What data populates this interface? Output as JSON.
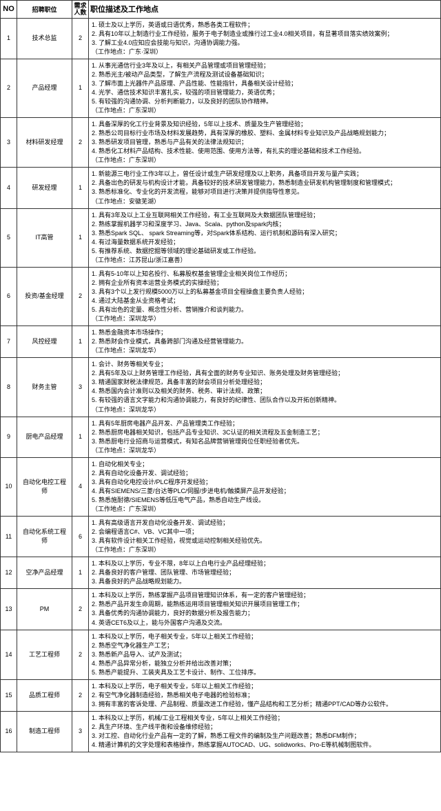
{
  "headers": {
    "no": "NO",
    "position": "招聘职位",
    "count": "需求\n人数",
    "desc": "职位描述及工作地点"
  },
  "rows": [
    {
      "no": "1",
      "position": "技术总监",
      "count": "2",
      "desc": "1. 硕士及以上学历，英语或日语优秀，熟悉各类工程软件；\n2. 具有10年以上制造行业工作经验，服务于电子制造业或推行过工业4.0相关项目，有显著项目落实绩效案例；\n3. 了解工业4.0应知应会技能与知识，沟通协调能力强。\n    （工作地点：广东·深圳）"
    },
    {
      "no": "2",
      "position": "产品经理",
      "count": "1",
      "desc": "1. 从事光通信行业3年及以上，有相关产品管理或项目管理经验；\n2. 熟悉光主/被动产品类型，了解生产流程及测试设备基础知识；\n3. 了解市面上光器件产品原理、产品性能、性能指针，具备相关设计经验；\n4. 光学、通信技术知识丰富扎实，较强的项目管理能力，英语优秀；\n5. 有较强的沟通协调、分析判断能力，以及良好的团队协作精神。\n    （工作地点：广东深圳）"
    },
    {
      "no": "3",
      "position": "材料研发经理",
      "count": "2",
      "desc": "1. 具备深厚的化工行业背景及知识经验，5年以上技术、质量及生产管理经验；\n2. 熟悉公司目标行业市场及材料发展趋势，具有深厚的橡胶、塑料、金属材料专业知识及产品战略规划能力；\n3. 熟悉研发项目管理，熟悉与产品有关的法律法规知识；\n4. 熟悉化工材料产品结构、技术性能、使用范围、使用方法等，有扎实的理论基础和技术工作经验。\n    （工作地点：广东深圳）"
    },
    {
      "no": "4",
      "position": "研发经理",
      "count": "1",
      "desc": "1. 新能源三电行业工作3年以上，曾任设计或生产研发经理及以上职务，具备项目开发与量产实践；\n2. 具备出色的研发与机构设计才能，具备较好的技术研发管理能力，熟悉制造业研发机构管理制度和管理模式；\n3. 熟悉标准化、专业化的开发流程，能够对项目进行决策并提供指导性意见。\n    （工作地点：安徽芜湖）"
    },
    {
      "no": "5",
      "position": "IT高管",
      "count": "1",
      "desc": "1. 具有3年及以上工业互联网相关工作经验，有工业互联网及大数据团队管理经验；\n2. 熟练掌握机器学习和深度学习、Java、Scala、python及spark内核；\n3. 熟悉Spark SQL、 spark Streaming等，对Spark体系结构、运行机制和源码有深入研究；\n4. 有过海量数据系统开发经验；\n5. 有推荐系统、数据挖掘等领域的理论基础研发或工作经验。\n    （工作地点：江苏昆山/浙江嘉善）"
    },
    {
      "no": "6",
      "position": "投资/基金经理",
      "count": "2",
      "desc": "1. 具有5-10年以上知名投行、私募股权基金管理企业相关岗位工作经历；\n2. 拥有企业所有资本运营业务模式的实操经验；\n3. 具有3个以上发行规模5000万以上的私募基金项目全程操盘主要负责人经验；\n4. 通过大陆基金从业资格考试；\n5. 具有出色的定量、概念性分析、营销推介和谈判能力。\n    （工作地点：深圳龙华）"
    },
    {
      "no": "7",
      "position": "风控经理",
      "count": "1",
      "desc": "1. 熟悉金融资本市场操作；\n2. 熟悉财会作业模式，具备跨部门沟通及经营管理能力。\n    （工作地点：深圳龙华）"
    },
    {
      "no": "8",
      "position": "财务主管",
      "count": "3",
      "desc": "1. 会计、财务等相关专业；\n2. 具有5年及以上财务管理工作经验，具有全面的财务专业知识、账务处理及财务管理经验；\n3. 精通国家财税法律规范，具备丰富的财会项目分析处理经验；\n4. 熟悉国内会计准则以及相关的财务、税务、审计法规、政策；\n5. 有较强的语言文字能力和沟通协调能力，有良好的纪律性、团队合作以及开拓创新精神。\n    （工作地点：深圳龙华）"
    },
    {
      "no": "9",
      "position": "厨电产品经理",
      "count": "1",
      "desc": "1. 具有5年厨房电器产品开发、产品管理类工作经验；\n2. 熟悉厨房电器相关知识，包括产品专业知识、3C认证的相关流程及五金制造工艺；\n3. 熟悉厨电行业招商与运营模式，有知名品牌营销管理岗位任职经验者优先。\n    （工作地点：深圳龙华）"
    },
    {
      "no": "10",
      "position": "自动化电控工程师",
      "count": "4",
      "desc": "1. 自动化相关专业；\n2. 具有自动化设备开发、调试经验；\n3. 具有自动化电控设计/PLC程序开发经验；\n4. 具有SIEMENS/三菱/台达等PLC/伺服/步进电机/触摸屏产品开发经验；\n5. 熟悉施耐德/SIEMENS等低压电气产品，熟悉自动生产线设。\n    （工作地点：广东深圳）"
    },
    {
      "no": "11",
      "position": "自动化系统工程师",
      "count": "6",
      "desc": "1. 具有高级语言开发自动化设备开发、调试经验；\n2. 会编程语言C#、VB、VC其中一项；\n3. 具有软件设计相关工作经验，视觉或运动控制相关经验优先。\n    （工作地点：广东深圳）"
    },
    {
      "no": "12",
      "position": "空净产品经理",
      "count": "1",
      "desc": "1. 本科及以上学历，专业不限，8年以上白电行业产品经理经验；\n2. 具备良好的客户管理、团队管理、市场管理经验；\n3. 具备良好的产品战略规划能力。"
    },
    {
      "no": "13",
      "position": "PM",
      "count": "2",
      "desc": "1. 本科及以上学历，熟练掌握产品项目管理知识体系，有一定的客户管理经验；\n2. 熟悉产品开发生命周期，能熟练运用项目管理相关知识开展项目管理工作；\n3. 具备优秀的沟通协调能力，良好的数据分析及报告能力；\n4. 英语CET6及以上，能与外国客户沟通及交流。"
    },
    {
      "no": "14",
      "position": "工艺工程师",
      "count": "2",
      "desc": "1. 本科及以上学历，电子相关专业，5年以上相关工作经验；\n2. 熟悉空气净化器生产工艺；\n3. 熟悉新产品导入、试产及测试；\n4. 熟悉产品异常分析，能独立分析并给出改善对策；\n5. 熟悉产能提升、工装夹具及工艺卡设计、制作、工位排序。"
    },
    {
      "no": "15",
      "position": "品质工程师",
      "count": "2",
      "desc": "1. 本科及以上学历，电子相关专业，5年以上相关工作经验；\n2. 有空气净化器制造经验，熟悉相关电子电器的检验标准；\n3. 拥有丰富的客诉处理、产品制程、质量改进工作经验，懂产品结构和工艺分析；精通PPT/CAD等办公软件。"
    },
    {
      "no": "16",
      "position": "制造工程师",
      "count": "3",
      "desc": "1. 本科及以上学历，机械/工业工程相关专业，5年以上相关工作经验；\n2. 具生产环境、生产线平衡和设备维修经验；\n3. 对工控、自动化行业产品有一定的了解，熟悉工程文件的编制及生产问题改善；熟悉DFM制作；\n4. 精通计算机的文字处理和表格操作，熟练掌握AUTOCAD、UG、solidworks、Pro-E等机械制图软件。"
    }
  ],
  "colors": {
    "border": "#333333",
    "bg": "#ffffff",
    "text": "#000000"
  }
}
